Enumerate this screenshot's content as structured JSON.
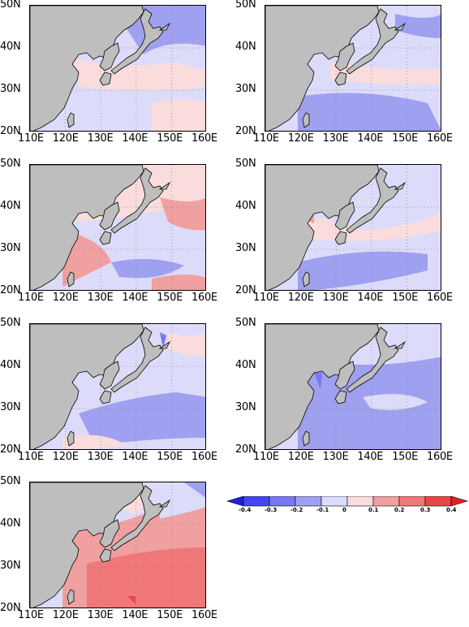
{
  "panels": [
    {
      "id": "p1",
      "pattern": "weak-mixed"
    },
    {
      "id": "p2",
      "pattern": "negative-south"
    },
    {
      "id": "p3",
      "pattern": "positive-mixed"
    },
    {
      "id": "p4",
      "pattern": "negative-band"
    },
    {
      "id": "p5",
      "pattern": "weak-negative"
    },
    {
      "id": "p6",
      "pattern": "negative-broad"
    },
    {
      "id": "p7",
      "pattern": "positive-strong"
    }
  ],
  "lat_ticks": [
    "50N",
    "40N",
    "30N",
    "20N"
  ],
  "lon_ticks": [
    "110E",
    "120E",
    "130E",
    "140E",
    "150E",
    "160E"
  ],
  "colorbar": {
    "ticks": [
      "-0.4",
      "-0.3",
      "-0.2",
      "-0.1",
      "0",
      "0.1",
      "0.2",
      "0.3",
      "0.4"
    ],
    "colors": [
      "#1e1ee6",
      "#4646f0",
      "#7878f0",
      "#a0a0f0",
      "#dcdcfa",
      "#fadcdc",
      "#f0a0a0",
      "#f07878",
      "#e84646",
      "#e61e1e"
    ]
  },
  "colors": {
    "land": "#bebebe",
    "ocean_base": "#dcdcfa"
  }
}
